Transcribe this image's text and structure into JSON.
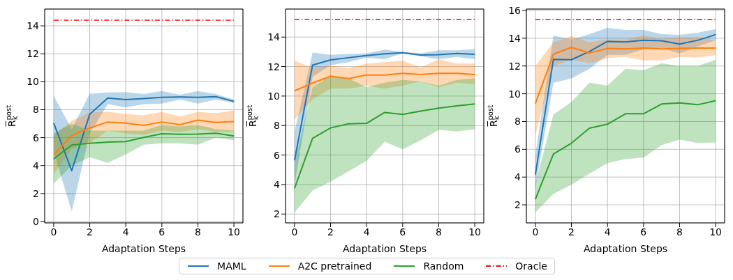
{
  "chart_data": [
    {
      "type": "line",
      "xlabel": "Adaptation Steps",
      "ylabel": "R̅$_{k}$$^{post}$",
      "x": [
        0,
        1,
        2,
        3,
        4,
        5,
        6,
        7,
        8,
        9,
        10
      ],
      "xlim": [
        -0.5,
        10.5
      ],
      "xticks": [
        0,
        2,
        4,
        6,
        8,
        10
      ],
      "ylim": [
        -0.1,
        15.2
      ],
      "yticks": [
        0,
        2,
        4,
        6,
        8,
        10,
        12,
        14
      ],
      "grid": true,
      "legend": "bottom",
      "series": [
        {
          "name": "MAML",
          "color": "#1f77b4",
          "values": [
            7.05,
            3.63,
            7.68,
            8.83,
            8.72,
            8.8,
            8.88,
            8.91,
            8.88,
            8.93,
            8.59
          ],
          "lower": [
            5.0,
            0.72,
            6.3,
            8.4,
            8.16,
            8.4,
            8.43,
            8.72,
            8.43,
            8.72,
            8.48
          ],
          "upper": [
            9.0,
            6.6,
            9.15,
            9.23,
            9.26,
            9.12,
            9.33,
            9.07,
            9.33,
            9.12,
            8.72
          ]
        },
        {
          "name": "A2C pretrained",
          "color": "#ff7f0e",
          "values": [
            4.77,
            6.16,
            6.69,
            7.12,
            7.04,
            6.88,
            7.12,
            6.93,
            7.25,
            7.09,
            7.15
          ],
          "lower": [
            3.4,
            5.2,
            5.6,
            6.5,
            6.3,
            6.2,
            6.5,
            6.4,
            6.6,
            6.4,
            6.4
          ],
          "upper": [
            6.2,
            7.2,
            7.8,
            7.85,
            7.7,
            7.6,
            7.85,
            7.5,
            7.85,
            7.75,
            7.95
          ]
        },
        {
          "name": "Random",
          "color": "#2ca02c",
          "values": [
            4.48,
            5.47,
            5.6,
            5.68,
            5.72,
            6.02,
            6.28,
            6.24,
            6.26,
            6.32,
            6.12
          ],
          "lower": [
            2.7,
            4.0,
            4.6,
            4.2,
            4.8,
            5.5,
            5.6,
            5.6,
            5.5,
            6.0,
            5.8
          ],
          "upper": [
            6.3,
            7.0,
            6.5,
            6.5,
            6.5,
            6.5,
            6.9,
            6.8,
            6.9,
            6.6,
            6.5
          ]
        },
        {
          "name": "Oracle",
          "color": "#ff0000",
          "line_style": "dashdot",
          "values": [
            14.4,
            14.4,
            14.4,
            14.4,
            14.4,
            14.4,
            14.4,
            14.4,
            14.4,
            14.4,
            14.4
          ]
        }
      ]
    },
    {
      "type": "line",
      "xlabel": "Adaptation Steps",
      "ylabel": "R̅$_{k}$$^{post}$",
      "x": [
        0,
        1,
        2,
        3,
        4,
        5,
        6,
        7,
        8,
        9,
        10
      ],
      "xlim": [
        -0.5,
        10.5
      ],
      "xticks": [
        0,
        2,
        4,
        6,
        8,
        10
      ],
      "ylim": [
        1.4,
        15.9
      ],
      "yticks": [
        2,
        4,
        6,
        8,
        10,
        12,
        14
      ],
      "grid": true,
      "series": [
        {
          "color": "#1f77b4",
          "values": [
            5.64,
            12.1,
            12.45,
            12.6,
            12.75,
            12.86,
            12.94,
            12.78,
            12.81,
            12.89,
            12.83
          ],
          "lower": [
            4.0,
            11.3,
            12.1,
            12.3,
            12.6,
            12.5,
            12.9,
            12.7,
            12.5,
            12.65,
            12.5
          ],
          "upper": [
            7.6,
            12.95,
            12.8,
            12.85,
            12.9,
            13.15,
            13.0,
            12.9,
            13.1,
            13.1,
            13.2
          ]
        },
        {
          "color": "#ff7f0e",
          "values": [
            10.35,
            10.88,
            11.34,
            11.19,
            11.42,
            11.42,
            11.54,
            11.46,
            11.54,
            11.54,
            11.46
          ],
          "lower": [
            8.4,
            9.8,
            10.5,
            10.5,
            10.7,
            10.5,
            10.7,
            11.0,
            10.6,
            10.9,
            10.8
          ],
          "upper": [
            12.4,
            11.9,
            12.05,
            11.9,
            12.2,
            12.3,
            12.4,
            11.95,
            12.5,
            12.2,
            12.2
          ]
        },
        {
          "color": "#2ca02c",
          "values": [
            3.74,
            7.13,
            7.84,
            8.12,
            8.15,
            8.89,
            8.76,
            8.98,
            9.18,
            9.33,
            9.47
          ],
          "lower": [
            2.1,
            3.6,
            4.2,
            4.9,
            5.6,
            6.9,
            6.4,
            7.0,
            7.7,
            7.6,
            7.75
          ],
          "upper": [
            5.5,
            10.6,
            11.4,
            11.2,
            10.6,
            10.9,
            11.1,
            11.0,
            10.7,
            11.1,
            11.2
          ]
        },
        {
          "color": "#ff0000",
          "line_style": "dashdot",
          "values": [
            15.2,
            15.2,
            15.2,
            15.2,
            15.2,
            15.2,
            15.2,
            15.2,
            15.2,
            15.2,
            15.2
          ]
        }
      ]
    },
    {
      "type": "line",
      "xlabel": "Adaptation Steps",
      "ylabel": "R̅$_{k}$$^{post}$",
      "x": [
        0,
        1,
        2,
        3,
        4,
        5,
        6,
        7,
        8,
        9,
        10
      ],
      "xlim": [
        -0.5,
        10.5
      ],
      "xticks": [
        0,
        2,
        4,
        6,
        8,
        10
      ],
      "ylim": [
        0.7,
        16.1
      ],
      "yticks": [
        2,
        4,
        6,
        8,
        10,
        12,
        14,
        16
      ],
      "grid": true,
      "series": [
        {
          "color": "#1f77b4",
          "values": [
            4.18,
            12.48,
            12.45,
            13.05,
            13.77,
            13.73,
            13.85,
            13.82,
            13.58,
            13.85,
            14.26
          ],
          "lower": [
            3.2,
            10.8,
            11.1,
            11.8,
            12.8,
            12.8,
            13.2,
            13.3,
            12.9,
            13.4,
            13.85
          ],
          "upper": [
            5.6,
            14.2,
            13.9,
            14.3,
            14.75,
            14.6,
            14.6,
            14.3,
            14.25,
            14.4,
            14.65
          ]
        },
        {
          "color": "#ff7f0e",
          "values": [
            9.3,
            12.85,
            13.34,
            12.94,
            13.26,
            13.23,
            13.29,
            13.23,
            13.26,
            13.29,
            13.29
          ],
          "lower": [
            7.0,
            12.0,
            12.45,
            12.2,
            12.55,
            12.65,
            12.4,
            12.4,
            12.65,
            12.6,
            12.8
          ],
          "upper": [
            12.0,
            13.7,
            14.15,
            13.7,
            13.9,
            13.9,
            14.2,
            13.95,
            14.05,
            14.05,
            13.85
          ]
        },
        {
          "color": "#2ca02c",
          "values": [
            2.4,
            5.66,
            6.44,
            7.52,
            7.81,
            8.56,
            8.56,
            9.26,
            9.34,
            9.21,
            9.5
          ],
          "lower": [
            1.45,
            2.8,
            3.45,
            4.25,
            5.0,
            5.3,
            5.4,
            6.3,
            6.7,
            6.45,
            6.5
          ],
          "upper": [
            3.5,
            8.5,
            9.4,
            10.8,
            10.6,
            11.8,
            11.7,
            12.2,
            12.0,
            12.0,
            12.45
          ]
        },
        {
          "color": "#ff0000",
          "line_style": "dashdot",
          "values": [
            15.35,
            15.35,
            15.35,
            15.35,
            15.35,
            15.35,
            15.35,
            15.35,
            15.35,
            15.35,
            15.35
          ]
        }
      ]
    }
  ]
}
